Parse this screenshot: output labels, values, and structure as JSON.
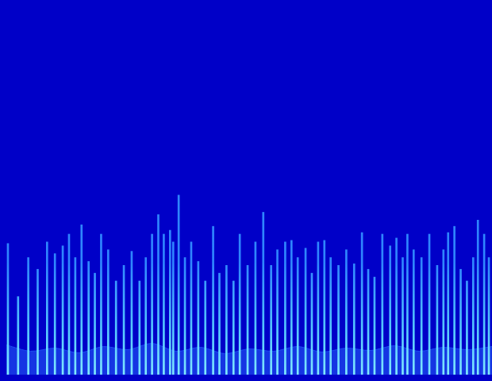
{
  "chart_data": {
    "type": "bar",
    "xlim": [
      0,
      620
    ],
    "ylim": [
      0,
      480
    ],
    "grid": false,
    "tick_labels": false,
    "series": [
      {
        "type": "bar",
        "color": "#2f86ff",
        "x": [
          2,
          15,
          28,
          40,
          52,
          62,
          72,
          80,
          88,
          96,
          105,
          113,
          121,
          130,
          140,
          150,
          160,
          170,
          178,
          186,
          194,
          201,
          209,
          213,
          220,
          228,
          236,
          245,
          254,
          264,
          272,
          281,
          290,
          298,
          308,
          318,
          328,
          338,
          346,
          356,
          364,
          372,
          382,
          390,
          398,
          406,
          414,
          424,
          434,
          444,
          454,
          462,
          470,
          480,
          490,
          498,
          506,
          512,
          520,
          530,
          540,
          550,
          558,
          564,
          572,
          580,
          588,
          596,
          602,
          610,
          616
        ],
        "values": [
          168,
          100,
          150,
          135,
          170,
          155,
          165,
          180,
          150,
          192,
          145,
          130,
          180,
          160,
          120,
          140,
          158,
          120,
          150,
          180,
          205,
          180,
          185,
          170,
          230,
          150,
          170,
          145,
          120,
          190,
          130,
          140,
          120,
          180,
          140,
          170,
          208,
          140,
          160,
          170,
          172,
          150,
          162,
          130,
          170,
          172,
          150,
          140,
          160,
          142,
          182,
          135,
          125,
          180,
          165,
          175,
          150,
          180,
          160,
          150,
          180,
          140,
          160,
          182,
          190,
          135,
          120,
          150,
          198,
          180,
          150
        ]
      },
      {
        "type": "line",
        "color": "#1f4ff0",
        "x": [
          0,
          31,
          62,
          93,
          124,
          155,
          186,
          217,
          248,
          279,
          310,
          341,
          372,
          403,
          434,
          465,
          496,
          527,
          558,
          589,
          620
        ],
        "values": [
          38,
          30,
          34,
          28,
          36,
          32,
          40,
          30,
          35,
          27,
          33,
          30,
          36,
          29,
          34,
          31,
          37,
          30,
          35,
          32,
          36
        ]
      }
    ]
  }
}
